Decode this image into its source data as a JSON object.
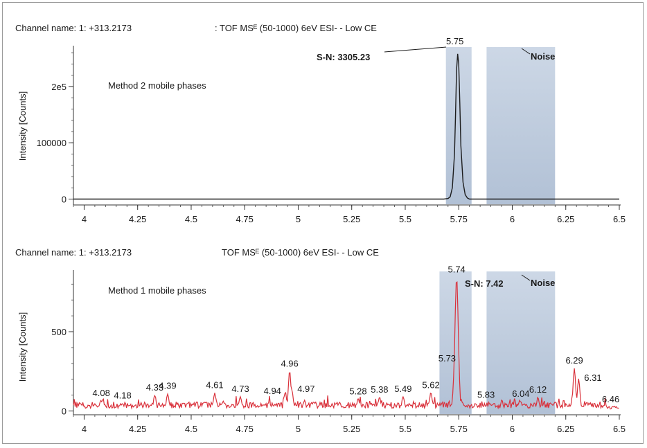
{
  "chart_data": [
    {
      "type": "line",
      "header_left": "Channel name: 1: +313.2173",
      "header_right": ": TOF MSᴱ (50-1000) 6eV ESI- - Low CE",
      "inner_label": "Method 2 mobile phases",
      "ylabel": "Intensity [Counts]",
      "xlim": [
        3.95,
        6.5
      ],
      "ylim": [
        -8000,
        270000
      ],
      "x_ticks": [
        4,
        4.25,
        4.5,
        4.75,
        5,
        5.25,
        5.5,
        5.75,
        6,
        6.25,
        6.5
      ],
      "x_tick_labels": [
        "4",
        "4.25",
        "4.5",
        "4.75",
        "5",
        "5.25",
        "5.5",
        "5.75",
        "6",
        "6.25",
        "6.5"
      ],
      "y_ticks": [
        0,
        100000,
        200000
      ],
      "y_tick_labels": [
        "0",
        "100000",
        "2e5"
      ],
      "signal_region": [
        5.69,
        5.81
      ],
      "noise_region": [
        5.88,
        6.2
      ],
      "line_color": "#1c1c1c",
      "region_color": "#b9c7d9",
      "series": [
        {
          "x": [
            3.95,
            5.68,
            5.7,
            5.71,
            5.72,
            5.73,
            5.735,
            5.74,
            5.745,
            5.75,
            5.755,
            5.76,
            5.77,
            5.78,
            5.79,
            5.8,
            6.5
          ],
          "values": [
            0,
            0,
            1000,
            4000,
            20000,
            80000,
            150000,
            230000,
            258000,
            240000,
            170000,
            95000,
            30000,
            8000,
            2000,
            0,
            0
          ]
        }
      ],
      "annotations": {
        "peak_label": "5.75",
        "sn_label": "S-N: 3305.23",
        "noise_label": "Noise"
      }
    },
    {
      "type": "line",
      "header_left": "Channel name: 1: +313.2173",
      "header_right": "TOF MSᴱ (50-1000) 6eV ESI- - Low CE",
      "inner_label": "Method 1 mobile phases",
      "ylabel": "Intensity [Counts]",
      "xlim": [
        3.95,
        6.5
      ],
      "ylim": [
        -15,
        880
      ],
      "x_ticks": [
        4,
        4.25,
        4.5,
        4.75,
        5,
        5.25,
        5.5,
        5.75,
        6,
        6.25,
        6.5
      ],
      "x_tick_labels": [
        "4",
        "4.25",
        "4.5",
        "4.75",
        "5",
        "5.25",
        "5.5",
        "5.75",
        "6",
        "6.25",
        "6.5"
      ],
      "y_ticks": [
        0,
        500
      ],
      "y_tick_labels": [
        "0",
        "500"
      ],
      "signal_region": [
        5.66,
        5.81
      ],
      "noise_region": [
        5.88,
        6.2
      ],
      "line_color": "#d9303a",
      "region_color": "#b9c7d9",
      "peaks": [
        {
          "x": 4.08,
          "y": 60
        },
        {
          "x": 4.18,
          "y": 45
        },
        {
          "x": 4.33,
          "y": 95
        },
        {
          "x": 4.39,
          "y": 105
        },
        {
          "x": 4.61,
          "y": 110
        },
        {
          "x": 4.73,
          "y": 85
        },
        {
          "x": 4.94,
          "y": 115
        },
        {
          "x": 4.96,
          "y": 245
        },
        {
          "x": 4.97,
          "y": 130
        },
        {
          "x": 5.28,
          "y": 70
        },
        {
          "x": 5.38,
          "y": 80
        },
        {
          "x": 5.49,
          "y": 85
        },
        {
          "x": 5.62,
          "y": 110
        },
        {
          "x": 5.73,
          "y": 260
        },
        {
          "x": 5.74,
          "y": 830
        },
        {
          "x": 5.83,
          "y": 40
        },
        {
          "x": 6.04,
          "y": 55
        },
        {
          "x": 6.12,
          "y": 80
        },
        {
          "x": 6.29,
          "y": 265
        },
        {
          "x": 6.31,
          "y": 200
        },
        {
          "x": 6.46,
          "y": 20
        }
      ],
      "peak_labels": [
        {
          "text": "4.08",
          "x": 4.08,
          "y": 60
        },
        {
          "text": "4.18",
          "x": 4.18,
          "y": 45
        },
        {
          "text": "4.33",
          "x": 4.33,
          "y": 95
        },
        {
          "text": "4.39",
          "x": 4.39,
          "y": 105
        },
        {
          "text": "4.61",
          "x": 4.61,
          "y": 110
        },
        {
          "text": "4.73",
          "x": 4.73,
          "y": 85
        },
        {
          "text": "4.94",
          "x": 4.94,
          "y": 115
        },
        {
          "text": "4.96",
          "x": 4.96,
          "y": 245
        },
        {
          "text": "4.97",
          "x": 4.97,
          "y": 130
        },
        {
          "text": "5.28",
          "x": 5.28,
          "y": 70
        },
        {
          "text": "5.38",
          "x": 5.38,
          "y": 80
        },
        {
          "text": "5.49",
          "x": 5.49,
          "y": 85
        },
        {
          "text": "5.62",
          "x": 5.62,
          "y": 110
        },
        {
          "text": "5.73",
          "x": 5.73,
          "y": 260
        },
        {
          "text": "5.74",
          "x": 5.74,
          "y": 830
        },
        {
          "text": "5.83",
          "x": 5.83,
          "y": 40
        },
        {
          "text": "6.04",
          "x": 6.04,
          "y": 55
        },
        {
          "text": "6.12",
          "x": 6.12,
          "y": 80
        },
        {
          "text": "6.29",
          "x": 6.29,
          "y": 265
        },
        {
          "text": "6.31",
          "x": 6.31,
          "y": 200
        },
        {
          "text": "6.46",
          "x": 6.46,
          "y": 20
        }
      ],
      "annotations": {
        "sn_label": "S-N: 7.42",
        "noise_label": "Noise"
      }
    }
  ]
}
